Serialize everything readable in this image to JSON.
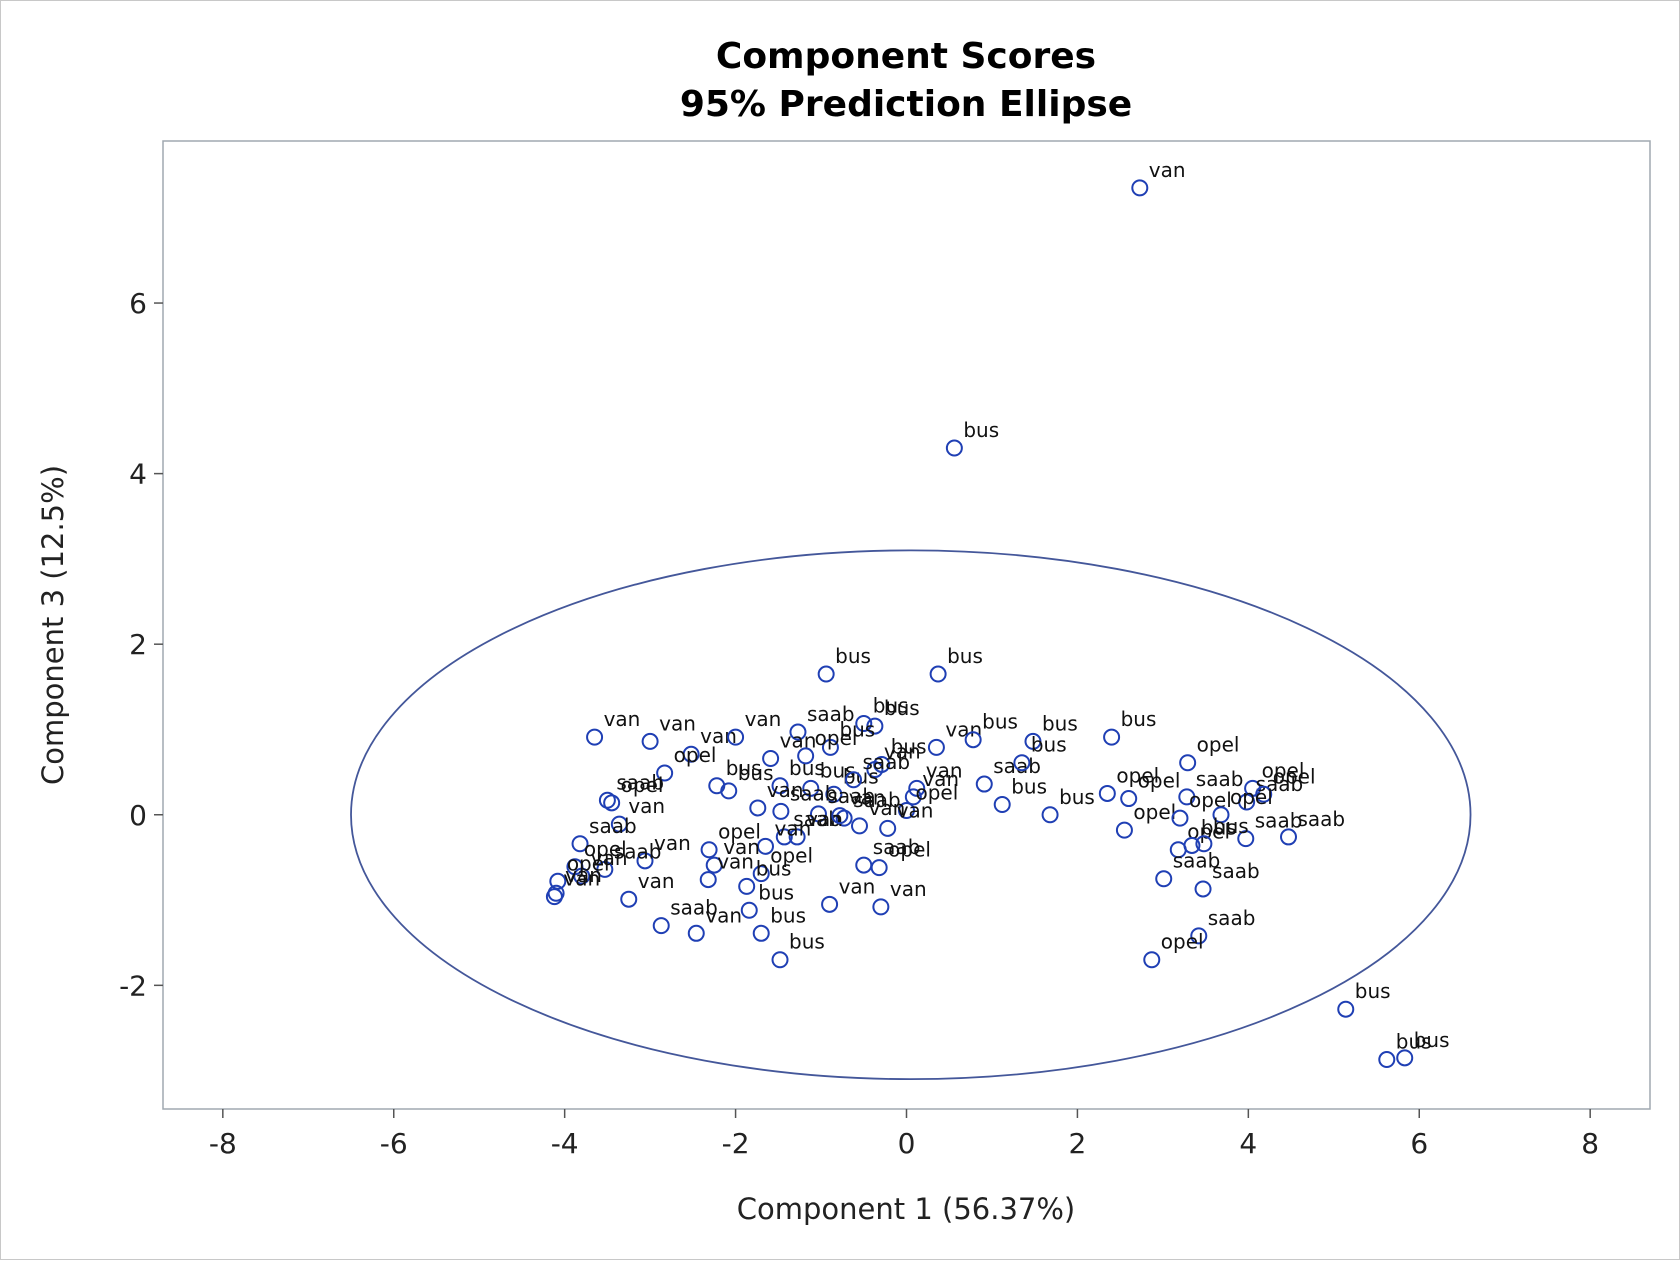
{
  "chart_data": {
    "type": "scatter",
    "title": "Component Scores",
    "subtitle": "95% Prediction Ellipse",
    "xlabel": "Component 1 (56.37%)",
    "ylabel": "Component 3 (12.5%)",
    "xlim": [
      -8.7,
      8.7
    ],
    "ylim": [
      -3.45,
      7.9
    ],
    "xticks": [
      -8,
      -6,
      -4,
      -2,
      0,
      2,
      4,
      6,
      8
    ],
    "yticks": [
      -2,
      0,
      2,
      4,
      6
    ],
    "xtick_labels": [
      "-8",
      "-6",
      "-4",
      "-2",
      "0",
      "2",
      "4",
      "6",
      "8"
    ],
    "ytick_labels": [
      "-2",
      "0",
      "2",
      "4",
      "6"
    ],
    "grid": false,
    "legend": "none",
    "marker_color": "#1f3fb4",
    "ellipse_color": "#44579a",
    "ellipse": {
      "cx": 0.05,
      "cy": 0.0,
      "rx": 6.55,
      "ry": 3.1
    },
    "points": [
      {
        "x": 2.73,
        "y": 7.35,
        "label": "van"
      },
      {
        "x": 0.56,
        "y": 4.3,
        "label": "bus"
      },
      {
        "x": -0.94,
        "y": 1.65,
        "label": "bus"
      },
      {
        "x": 0.37,
        "y": 1.65,
        "label": "bus"
      },
      {
        "x": -3.65,
        "y": 0.91,
        "label": "van"
      },
      {
        "x": -3.0,
        "y": 0.86,
        "label": "van"
      },
      {
        "x": -2.52,
        "y": 0.71,
        "label": "van"
      },
      {
        "x": -2.0,
        "y": 0.91,
        "label": "van"
      },
      {
        "x": -1.27,
        "y": 0.97,
        "label": "saab"
      },
      {
        "x": -0.5,
        "y": 1.07,
        "label": "bus"
      },
      {
        "x": -0.37,
        "y": 1.04,
        "label": "bus"
      },
      {
        "x": 0.35,
        "y": 0.79,
        "label": "van"
      },
      {
        "x": 0.78,
        "y": 0.88,
        "label": "bus"
      },
      {
        "x": 1.48,
        "y": 0.86,
        "label": "bus"
      },
      {
        "x": 2.4,
        "y": 0.91,
        "label": "bus"
      },
      {
        "x": 3.29,
        "y": 0.61,
        "label": "opel"
      },
      {
        "x": 4.05,
        "y": 0.31,
        "label": "opel"
      },
      {
        "x": -1.59,
        "y": 0.66,
        "label": "van"
      },
      {
        "x": -0.89,
        "y": 0.79,
        "label": "bus"
      },
      {
        "x": -2.83,
        "y": 0.49,
        "label": "opel"
      },
      {
        "x": -1.18,
        "y": 0.69,
        "label": "opel"
      },
      {
        "x": -0.29,
        "y": 0.59,
        "label": "bus"
      },
      {
        "x": -0.37,
        "y": 0.53,
        "label": "van"
      },
      {
        "x": 0.91,
        "y": 0.36,
        "label": "saab"
      },
      {
        "x": 1.35,
        "y": 0.61,
        "label": "bus"
      },
      {
        "x": 2.35,
        "y": 0.25,
        "label": "opel"
      },
      {
        "x": 2.6,
        "y": 0.19,
        "label": "opel"
      },
      {
        "x": -3.5,
        "y": 0.17,
        "label": "saab"
      },
      {
        "x": -3.45,
        "y": 0.14,
        "label": "opel"
      },
      {
        "x": -2.22,
        "y": 0.34,
        "label": "bus"
      },
      {
        "x": -2.08,
        "y": 0.28,
        "label": "bus"
      },
      {
        "x": -1.48,
        "y": 0.34,
        "label": "bus"
      },
      {
        "x": -1.12,
        "y": 0.31,
        "label": "bus"
      },
      {
        "x": -0.85,
        "y": 0.24,
        "label": "bus"
      },
      {
        "x": -0.62,
        "y": 0.41,
        "label": "saab"
      },
      {
        "x": 0.08,
        "y": 0.21,
        "label": "van"
      },
      {
        "x": 0.12,
        "y": 0.31,
        "label": "van"
      },
      {
        "x": 1.12,
        "y": 0.12,
        "label": "bus"
      },
      {
        "x": 0.0,
        "y": 0.05,
        "label": "opel"
      },
      {
        "x": 3.28,
        "y": 0.21,
        "label": "saab"
      },
      {
        "x": 3.98,
        "y": 0.15,
        "label": "saab"
      },
      {
        "x": 4.18,
        "y": 0.24,
        "label": "opel"
      },
      {
        "x": -3.36,
        "y": -0.11,
        "label": "van"
      },
      {
        "x": -1.74,
        "y": 0.08,
        "label": "van"
      },
      {
        "x": -1.47,
        "y": 0.04,
        "label": "saab"
      },
      {
        "x": -1.03,
        "y": 0.01,
        "label": "saab"
      },
      {
        "x": -0.73,
        "y": -0.04,
        "label": "saab"
      },
      {
        "x": -0.55,
        "y": -0.13,
        "label": "van"
      },
      {
        "x": -0.22,
        "y": -0.16,
        "label": "van"
      },
      {
        "x": 1.68,
        "y": 0.0,
        "label": "bus"
      },
      {
        "x": 2.55,
        "y": -0.18,
        "label": "opel"
      },
      {
        "x": 3.2,
        "y": -0.04,
        "label": "opel"
      },
      {
        "x": 3.68,
        "y": 0.0,
        "label": "opel"
      },
      {
        "x": 3.97,
        "y": -0.28,
        "label": "saab"
      },
      {
        "x": 4.47,
        "y": -0.26,
        "label": "saab"
      },
      {
        "x": -3.82,
        "y": -0.34,
        "label": "saab"
      },
      {
        "x": -2.31,
        "y": -0.41,
        "label": "opel"
      },
      {
        "x": -1.43,
        "y": -0.26,
        "label": "saab"
      },
      {
        "x": -1.28,
        "y": -0.26,
        "label": "van"
      },
      {
        "x": -1.65,
        "y": -0.37,
        "label": "van"
      },
      {
        "x": -0.78,
        "y": -0.01,
        "label": "van"
      },
      {
        "x": 3.18,
        "y": -0.41,
        "label": "opel"
      },
      {
        "x": 3.34,
        "y": -0.36,
        "label": "bus"
      },
      {
        "x": 3.48,
        "y": -0.34,
        "label": "bus"
      },
      {
        "x": -3.06,
        "y": -0.54,
        "label": "van"
      },
      {
        "x": -3.53,
        "y": -0.64,
        "label": "saab"
      },
      {
        "x": -3.88,
        "y": -0.61,
        "label": "opel"
      },
      {
        "x": -3.8,
        "y": -0.72,
        "label": "van"
      },
      {
        "x": -2.25,
        "y": -0.59,
        "label": "van"
      },
      {
        "x": -1.7,
        "y": -0.69,
        "label": "opel"
      },
      {
        "x": -0.5,
        "y": -0.59,
        "label": "saab"
      },
      {
        "x": -0.32,
        "y": -0.62,
        "label": "opel"
      },
      {
        "x": -4.08,
        "y": -0.78,
        "label": "opel"
      },
      {
        "x": -4.1,
        "y": -0.92,
        "label": "van"
      },
      {
        "x": -4.12,
        "y": -0.96,
        "label": "van"
      },
      {
        "x": -3.25,
        "y": -0.99,
        "label": "van"
      },
      {
        "x": -2.32,
        "y": -0.76,
        "label": "van"
      },
      {
        "x": -1.87,
        "y": -0.84,
        "label": "bus"
      },
      {
        "x": -0.9,
        "y": -1.05,
        "label": "van"
      },
      {
        "x": -0.3,
        "y": -1.08,
        "label": "van"
      },
      {
        "x": 3.01,
        "y": -0.75,
        "label": "saab"
      },
      {
        "x": 3.47,
        "y": -0.87,
        "label": "saab"
      },
      {
        "x": -2.87,
        "y": -1.3,
        "label": "saab"
      },
      {
        "x": -2.46,
        "y": -1.39,
        "label": "van"
      },
      {
        "x": -1.84,
        "y": -1.12,
        "label": "bus"
      },
      {
        "x": -1.7,
        "y": -1.39,
        "label": "bus"
      },
      {
        "x": -1.48,
        "y": -1.7,
        "label": "bus"
      },
      {
        "x": 3.42,
        "y": -1.42,
        "label": "saab"
      },
      {
        "x": 2.87,
        "y": -1.7,
        "label": "opel"
      },
      {
        "x": 5.14,
        "y": -2.28,
        "label": "bus"
      },
      {
        "x": 5.62,
        "y": -2.87,
        "label": "bus"
      },
      {
        "x": 5.83,
        "y": -2.85,
        "label": "bus"
      }
    ]
  }
}
